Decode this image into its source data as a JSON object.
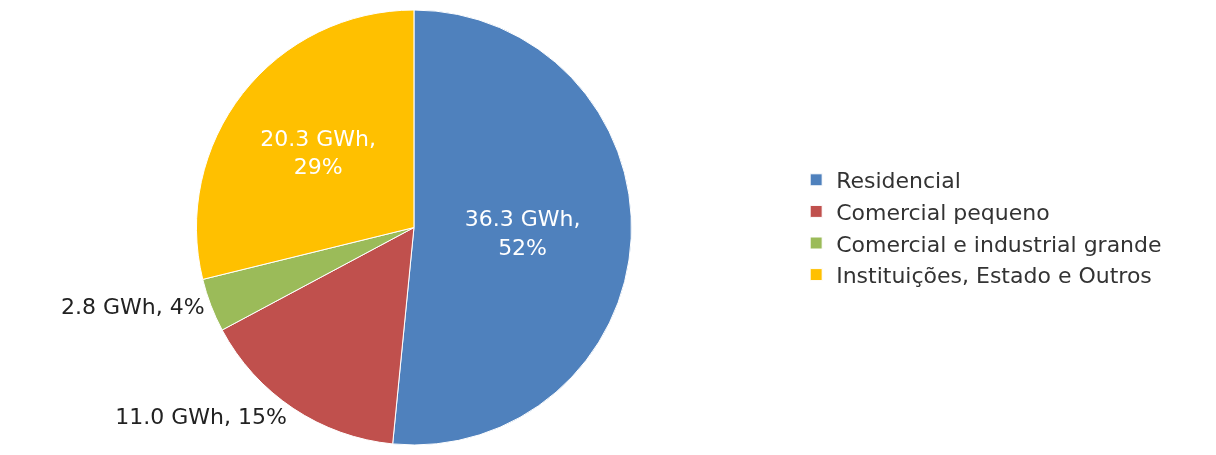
{
  "chart_data": {
    "type": "pie",
    "categories": [
      "Residencial",
      "Comercial pequeno",
      "Comercial e industrial grande",
      "Instituições, Estado e Outros"
    ],
    "values": [
      36.3,
      11.0,
      2.8,
      20.3
    ],
    "colors": [
      "#4f81bd",
      "#c0504d",
      "#9bbb59",
      "#ffc000"
    ],
    "value_labels": [
      "36.3 GWh, 52%",
      "11.0 GWh, 15%",
      "2.8 GWh, 4%",
      "20.3 GWh, 29%"
    ],
    "legend": "right"
  }
}
